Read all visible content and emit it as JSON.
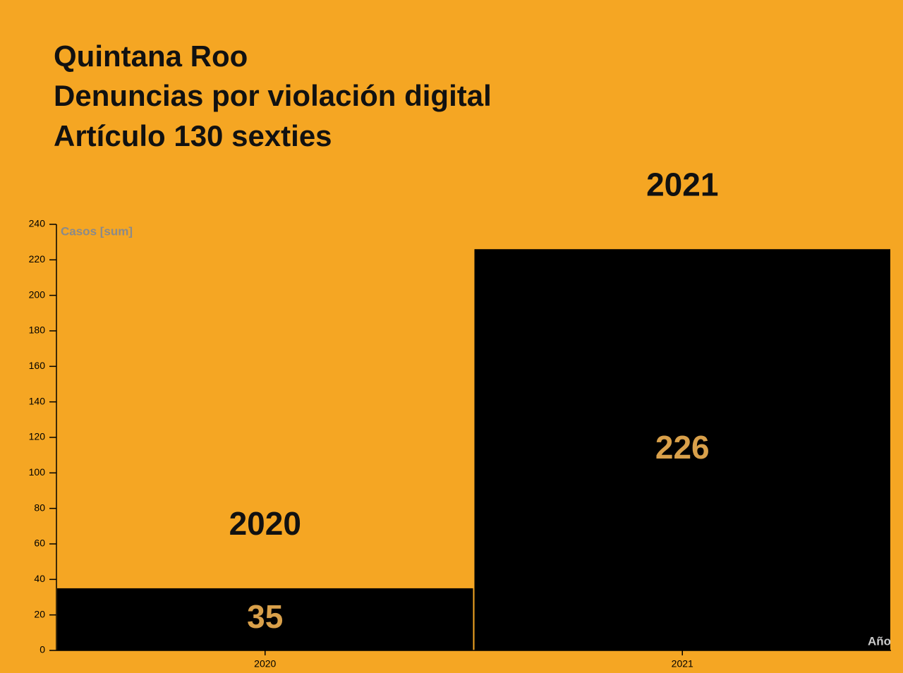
{
  "chart_data": {
    "type": "bar",
    "title": [
      "Quintana Roo",
      "Denuncias por violación digital",
      "Artículo 130 sexties"
    ],
    "y_label": "Casos [sum]",
    "x_label": "Año",
    "categories": [
      "2020",
      "2021"
    ],
    "values": [
      35,
      226
    ],
    "color": "#000000",
    "value_label_color": "#d9a04a",
    "ylim": [
      0,
      240
    ],
    "yticks": [
      0,
      20,
      40,
      60,
      80,
      100,
      120,
      140,
      160,
      180,
      200,
      220,
      240
    ],
    "grid": false
  }
}
